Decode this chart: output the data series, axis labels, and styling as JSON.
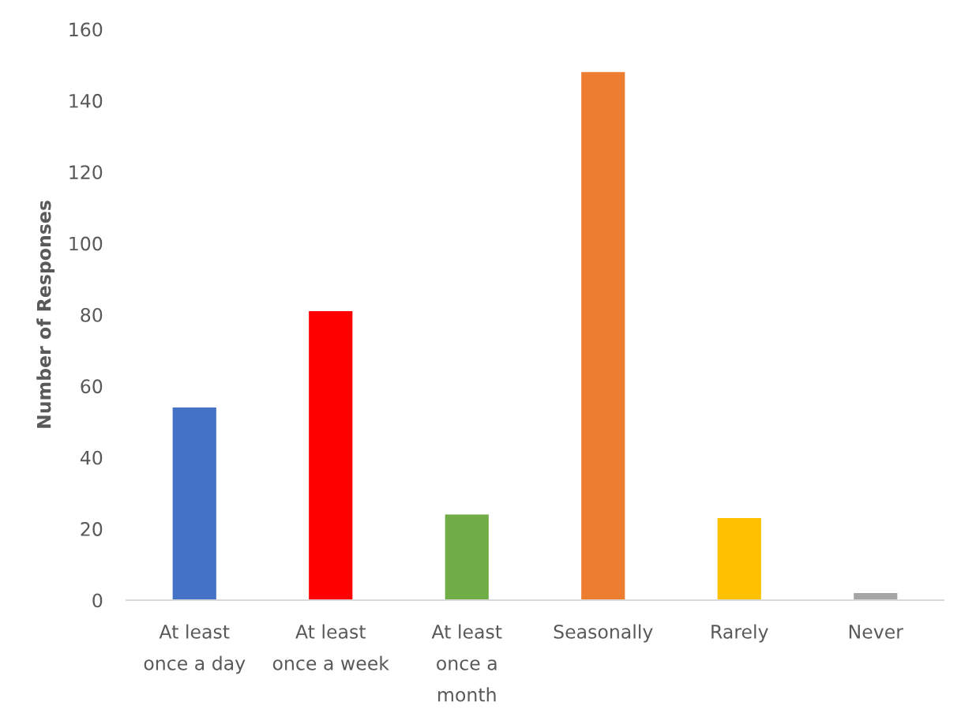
{
  "chart_data": {
    "type": "bar",
    "ylabel": "Number of Responses",
    "categories": [
      "At least\nonce a day",
      "At least\nonce a week",
      "At least\nonce a\nmonth",
      "Seasonally",
      "Rarely",
      "Never"
    ],
    "values": [
      54,
      81,
      24,
      148,
      23,
      2
    ],
    "colors": [
      "#4472c4",
      "#ff0000",
      "#70ad47",
      "#ed7d31",
      "#ffc000",
      "#a5a5a5"
    ],
    "ylim": [
      0,
      160
    ],
    "yticks": [
      0,
      20,
      40,
      60,
      80,
      100,
      120,
      140,
      160
    ]
  }
}
